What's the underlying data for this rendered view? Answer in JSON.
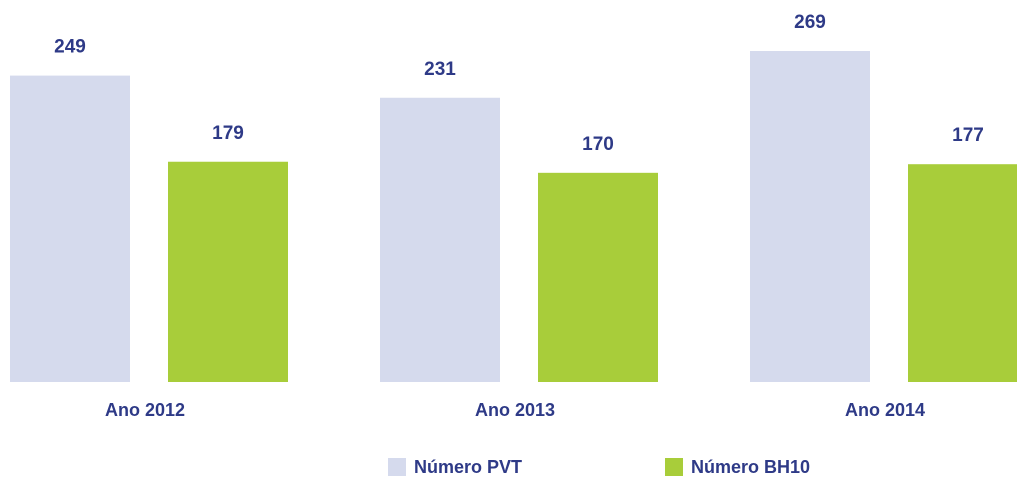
{
  "chart_data": {
    "type": "bar",
    "categories": [
      "Ano 2012",
      "Ano 2013",
      "Ano 2014"
    ],
    "series": [
      {
        "name": "Número PVT",
        "color": "#d5daed",
        "values": [
          249,
          231,
          269
        ]
      },
      {
        "name": "Número BH10",
        "color": "#a8cd3a",
        "values": [
          179,
          170,
          177
        ]
      }
    ],
    "legend": "bottom"
  }
}
